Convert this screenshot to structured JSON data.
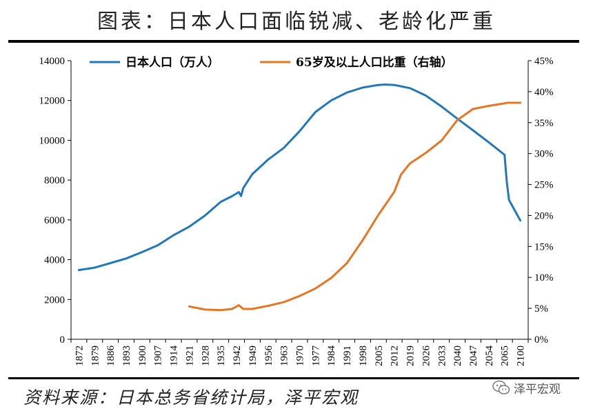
{
  "title": "图表：日本人口面临锐减、老龄化严重",
  "source": "资料来源：日本总务省统计局，泽平宏观",
  "watermark": {
    "label": "泽平宏观",
    "icon": "wechat-icon"
  },
  "chart_data": {
    "type": "line",
    "title": "图表：日本人口面临锐减、老龄化严重",
    "legend_placement": "top",
    "grid": false,
    "x_ticks": [
      "1872",
      "1879",
      "1886",
      "1893",
      "1900",
      "1907",
      "1914",
      "1921",
      "1928",
      "1935",
      "1942",
      "1949",
      "1956",
      "1963",
      "1970",
      "1977",
      "1984",
      "1991",
      "1998",
      "2005",
      "2012",
      "2019",
      "2026",
      "2033",
      "2040",
      "2047",
      "2054",
      "2065",
      "2100"
    ],
    "y_left": {
      "ylim": [
        0,
        14000
      ],
      "ticks": [
        "0",
        "2000",
        "4000",
        "6000",
        "8000",
        "10000",
        "12000",
        "14000"
      ]
    },
    "y_right": {
      "ylim": [
        0,
        45
      ],
      "ticks": [
        "0%",
        "5%",
        "10%",
        "15%",
        "20%",
        "25%",
        "30%",
        "35%",
        "40%",
        "45%"
      ]
    },
    "series": [
      {
        "name": "日本人口（万人）",
        "axis": "left",
        "color": "#1f77bd",
        "points": [
          [
            "1872",
            3480
          ],
          [
            "1879",
            3600
          ],
          [
            "1886",
            3830
          ],
          [
            "1893",
            4060
          ],
          [
            "1900",
            4380
          ],
          [
            "1907",
            4720
          ],
          [
            "1914",
            5230
          ],
          [
            "1921",
            5660
          ],
          [
            "1928",
            6220
          ],
          [
            "1935",
            6910
          ],
          [
            "1940",
            7190
          ],
          [
            "1943",
            7400
          ],
          [
            "1944",
            7200
          ],
          [
            "1945",
            7600
          ],
          [
            "1949",
            8300
          ],
          [
            "1956",
            9030
          ],
          [
            "1963",
            9620
          ],
          [
            "1970",
            10460
          ],
          [
            "1977",
            11420
          ],
          [
            "1984",
            12000
          ],
          [
            "1991",
            12400
          ],
          [
            "1998",
            12650
          ],
          [
            "2005",
            12780
          ],
          [
            "2008",
            12800
          ],
          [
            "2012",
            12780
          ],
          [
            "2019",
            12620
          ],
          [
            "2026",
            12250
          ],
          [
            "2033",
            11700
          ],
          [
            "2040",
            11090
          ],
          [
            "2047",
            10500
          ],
          [
            "2054",
            9900
          ],
          [
            "2065",
            9270
          ],
          [
            "2070",
            7900
          ],
          [
            "2075",
            7000
          ],
          [
            "2100",
            5970
          ]
        ]
      },
      {
        "name": "65岁及以上人口比重（右轴）",
        "axis": "right",
        "color": "#e97522",
        "points": [
          [
            "1921",
            5.3
          ],
          [
            "1928",
            4.8
          ],
          [
            "1935",
            4.7
          ],
          [
            "1940",
            4.9
          ],
          [
            "1943",
            5.5
          ],
          [
            "1944",
            5.2
          ],
          [
            "1945",
            4.9
          ],
          [
            "1949",
            4.9
          ],
          [
            "1956",
            5.4
          ],
          [
            "1963",
            6.0
          ],
          [
            "1970",
            7.0
          ],
          [
            "1977",
            8.2
          ],
          [
            "1984",
            9.9
          ],
          [
            "1991",
            12.3
          ],
          [
            "1998",
            16.0
          ],
          [
            "2005",
            20.1
          ],
          [
            "2012",
            23.8
          ],
          [
            "2015",
            26.6
          ],
          [
            "2019",
            28.4
          ],
          [
            "2026",
            30.1
          ],
          [
            "2033",
            32.1
          ],
          [
            "2040",
            35.4
          ],
          [
            "2047",
            37.2
          ],
          [
            "2054",
            37.7
          ],
          [
            "2065",
            38.1
          ],
          [
            "2070",
            38.2
          ],
          [
            "2075",
            38.2
          ],
          [
            "2100",
            38.2
          ]
        ]
      }
    ]
  }
}
